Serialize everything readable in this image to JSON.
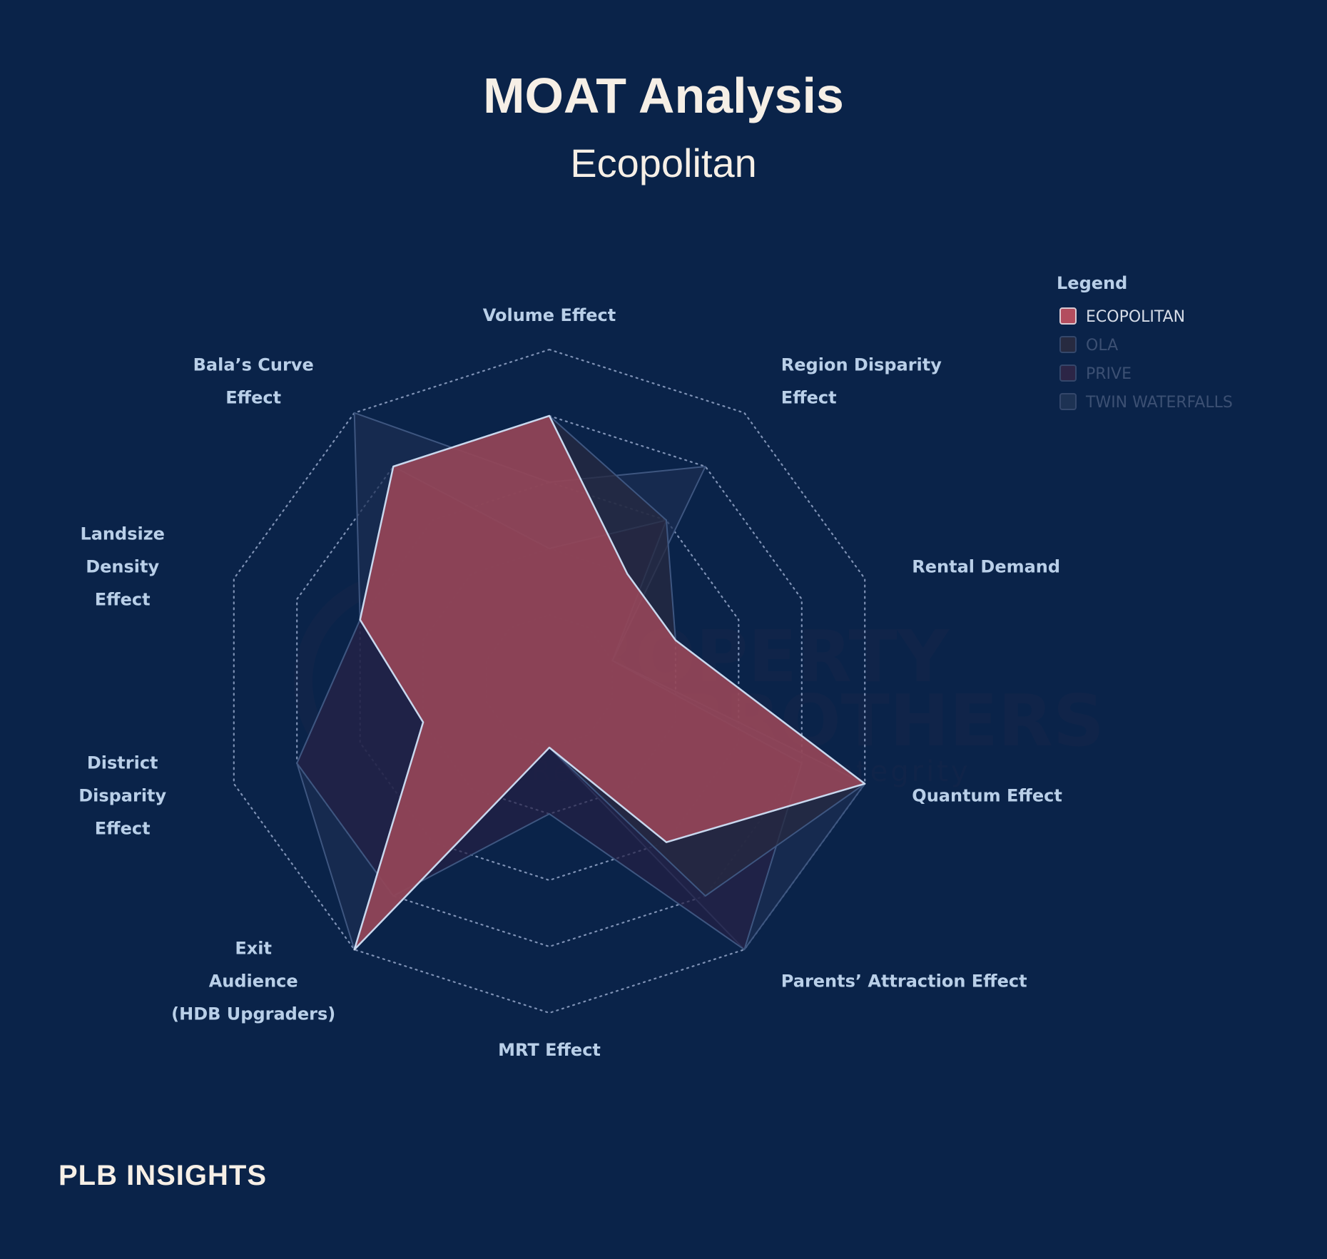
{
  "chart_data": {
    "type": "radar",
    "title": "MOAT Analysis",
    "subtitle": "Ecopolitan",
    "categories": [
      [
        "Volume Effect"
      ],
      [
        "Region Disparity",
        "Effect"
      ],
      [
        "Rental Demand"
      ],
      [
        "Quantum Effect"
      ],
      [
        "Parents’ Attraction Effect"
      ],
      [
        "MRT Effect"
      ],
      [
        "Exit",
        "Audience",
        "(HDB Upgraders)"
      ],
      [
        "District",
        "Disparity",
        "Effect"
      ],
      [
        "Landsize",
        "Density",
        "Effect"
      ],
      [
        "Bala’s Curve",
        "Effect"
      ]
    ],
    "rlim": [
      0,
      5
    ],
    "series": [
      {
        "name": "TWIN WATERFALLS",
        "values": [
          3,
          4,
          1,
          5,
          5,
          1,
          5,
          4,
          3,
          5
        ],
        "color": "#1b2d52",
        "fill_opacity": 0.7,
        "highlight": false
      },
      {
        "name": "PRIVE",
        "values": [
          2,
          3,
          1,
          4,
          5,
          2,
          4,
          4,
          3,
          4
        ],
        "color": "#241f45",
        "fill_opacity": 0.7,
        "highlight": false
      },
      {
        "name": "OLA",
        "values": [
          4,
          3,
          2,
          5,
          4,
          1,
          5,
          2,
          3,
          4
        ],
        "color": "#272a40",
        "fill_opacity": 0.75,
        "highlight": false
      },
      {
        "name": "ECOPOLITAN",
        "values": [
          4,
          2,
          2,
          5,
          3,
          1,
          5,
          2,
          3,
          4
        ],
        "color": "#b34d5e",
        "fill_opacity": 0.72,
        "highlight": true
      }
    ],
    "legend": {
      "title": "Legend",
      "placement": "top-right",
      "entries": [
        "ECOPOLITAN",
        "OLA",
        "PRIVE",
        "TWIN WATERFALLS"
      ],
      "colors": [
        "#b34d5e",
        "#272a40",
        "#2c2546",
        "#1d3253"
      ]
    },
    "grid": "dotted"
  },
  "watermark": {
    "line1": "PROPERTY",
    "line2": "LIMBROTHERS",
    "line3": "Real Estate With Integrity"
  },
  "brand": {
    "text": "PLB INSIGHTS"
  }
}
